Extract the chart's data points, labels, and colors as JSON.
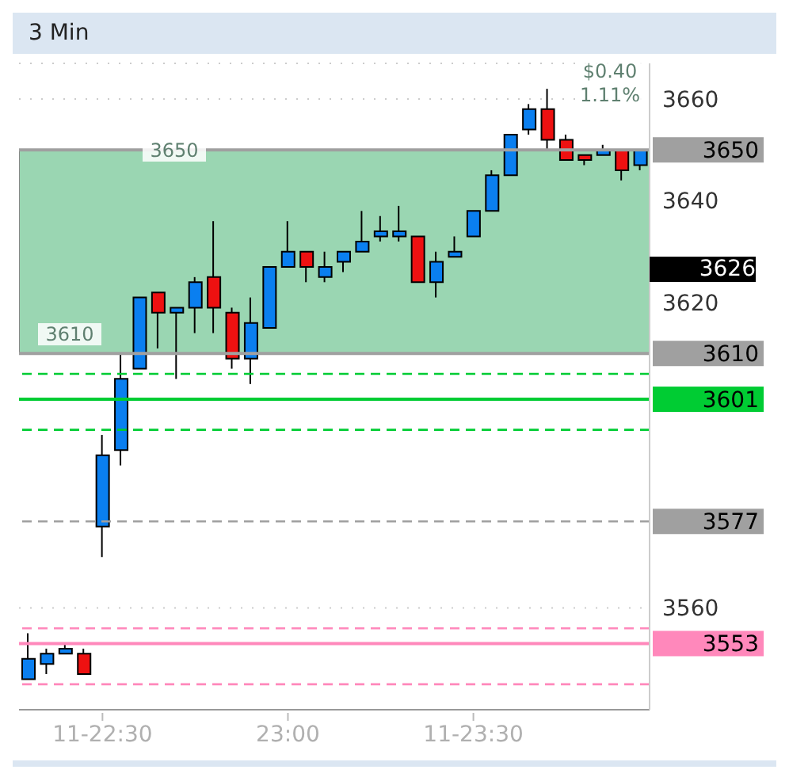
{
  "chart_data": {
    "type": "candlestick",
    "title": "3 Min",
    "categories": [
      null,
      null,
      null,
      null,
      "11-22:30",
      null,
      null,
      null,
      null,
      null,
      null,
      null,
      null,
      null,
      "23:00",
      null,
      null,
      null,
      null,
      null,
      null,
      null,
      null,
      null,
      "11-23:30",
      null,
      null,
      null,
      null,
      null,
      null,
      null,
      null,
      null
    ],
    "ohlc": [
      [
        3546,
        3555,
        3546,
        3550
      ],
      [
        3549,
        3552,
        3547,
        3551
      ],
      [
        3551,
        3553,
        3551,
        3552
      ],
      [
        3551,
        3552,
        3547,
        3547
      ],
      [
        3576,
        3594,
        3570,
        3590
      ],
      [
        3591,
        3610,
        3588,
        3605
      ],
      [
        3607,
        3621,
        3607,
        3621
      ],
      [
        3622,
        3622,
        3611,
        3618
      ],
      [
        3618,
        3619,
        3605,
        3619
      ],
      [
        3619,
        3625,
        3614,
        3624
      ],
      [
        3625,
        3636,
        3614,
        3619
      ],
      [
        3618,
        3619,
        3607,
        3609
      ],
      [
        3609,
        3621,
        3604,
        3616
      ],
      [
        3615,
        3627,
        3615,
        3627
      ],
      [
        3627,
        3636,
        3627,
        3630
      ],
      [
        3630,
        3630,
        3624,
        3627
      ],
      [
        3625,
        3630,
        3624,
        3627
      ],
      [
        3628,
        3630,
        3626,
        3630
      ],
      [
        3630,
        3638,
        3630,
        3632
      ],
      [
        3633,
        3637,
        3632,
        3634
      ],
      [
        3633,
        3639,
        3632,
        3634
      ],
      [
        3633,
        3633,
        3624,
        3624
      ],
      [
        3624,
        3630,
        3621,
        3628
      ],
      [
        3629,
        3633,
        3629,
        3630
      ],
      [
        3633,
        3638,
        3633,
        3638
      ],
      [
        3638,
        3646,
        3638,
        3645
      ],
      [
        3645,
        3653,
        3645,
        3653
      ],
      [
        3654,
        3659,
        3653,
        3658
      ],
      [
        3658,
        3662,
        3650,
        3652
      ],
      [
        3652,
        3653,
        3648,
        3648
      ],
      [
        3649,
        3649,
        3647,
        3648
      ],
      [
        3649,
        3651,
        3649,
        3650
      ],
      [
        3650,
        3650,
        3644,
        3646
      ],
      [
        3647,
        3650,
        3646,
        3650
      ]
    ],
    "ylim": [
      3540,
      3667
    ],
    "yticks": [
      3560,
      3620,
      3640,
      3660
    ],
    "grid": "y",
    "ref_lines": [
      {
        "axis": "y",
        "value": 3650,
        "label": "3650",
        "color": "#a0a0a0",
        "line_style": "solid"
      },
      {
        "axis": "y",
        "value": 3610,
        "label": "3610",
        "color": "#a0a0a0",
        "line_style": "solid"
      },
      {
        "axis": "y",
        "value": 3606,
        "label": null,
        "color": "#00cc33",
        "line_style": "dashed"
      },
      {
        "axis": "y",
        "value": 3601,
        "label": "3601",
        "color": "#00cc33",
        "line_style": "solid"
      },
      {
        "axis": "y",
        "value": 3595,
        "label": null,
        "color": "#00cc33",
        "line_style": "dashed"
      },
      {
        "axis": "y",
        "value": 3577,
        "label": "3577",
        "color": "#a0a0a0",
        "line_style": "dashed"
      },
      {
        "axis": "y",
        "value": 3556,
        "label": null,
        "color": "#ff88bb",
        "line_style": "dashed"
      },
      {
        "axis": "y",
        "value": 3553,
        "label": "3553",
        "color": "#ff88bb",
        "line_style": "solid"
      },
      {
        "axis": "y",
        "value": 3545,
        "label": null,
        "color": "#ff88bb",
        "line_style": "dashed"
      }
    ],
    "bands": [
      {
        "axis": "y",
        "from": 3610,
        "to": 3650,
        "color": "#9ad6b2"
      }
    ],
    "annotations": [
      "3650",
      "3610",
      "$0.40",
      "1.11%",
      "3626"
    ]
  }
}
